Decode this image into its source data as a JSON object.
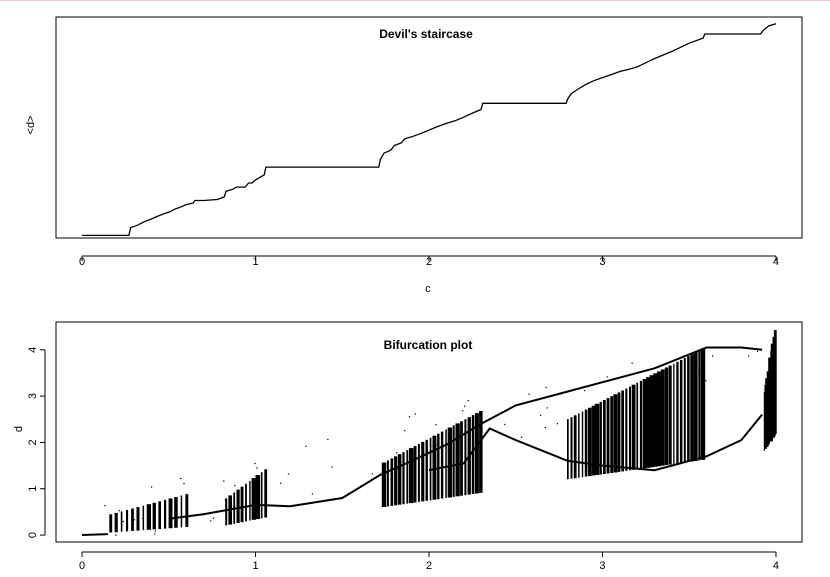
{
  "chart_data": [
    {
      "type": "line",
      "title": "Devil's staircase",
      "xlabel": "c",
      "ylabel": "<d>",
      "xlim": [
        -0.15,
        4.15
      ],
      "ylim": [
        -0.05,
        4.25
      ],
      "xticks": [
        0,
        1,
        2,
        3,
        4
      ],
      "yticks": [],
      "grid": false,
      "series": [
        {
          "x": [
            0,
            0.27,
            0.28,
            0.32,
            0.36,
            0.4,
            0.44,
            0.48,
            0.5,
            0.54,
            0.56,
            0.6,
            0.64,
            0.65,
            0.7,
            0.78,
            0.82,
            0.83,
            0.85,
            0.87,
            0.89,
            0.94,
            0.96,
            0.98,
            1.0,
            1.02,
            1.05,
            1.06,
            1.35,
            1.71,
            1.72,
            1.74,
            1.78,
            1.8,
            1.84,
            1.86,
            1.9,
            1.95,
            2.0,
            2.05,
            2.1,
            2.15,
            2.2,
            2.25,
            2.3,
            2.31,
            2.6,
            2.79,
            2.8,
            2.82,
            2.86,
            2.9,
            2.95,
            3.0,
            3.05,
            3.1,
            3.15,
            3.2,
            3.3,
            3.4,
            3.5,
            3.58,
            3.59,
            3.8,
            3.91,
            3.93,
            3.96,
            4.0
          ],
          "y": [
            0.0,
            0.0,
            0.15,
            0.2,
            0.27,
            0.32,
            0.38,
            0.43,
            0.45,
            0.52,
            0.54,
            0.6,
            0.63,
            0.68,
            0.68,
            0.7,
            0.75,
            0.86,
            0.88,
            0.9,
            0.94,
            0.94,
            1.02,
            1.02,
            1.08,
            1.12,
            1.18,
            1.33,
            1.33,
            1.33,
            1.48,
            1.6,
            1.66,
            1.75,
            1.8,
            1.88,
            1.92,
            1.98,
            2.05,
            2.12,
            2.18,
            2.23,
            2.3,
            2.38,
            2.45,
            2.57,
            2.57,
            2.57,
            2.66,
            2.76,
            2.85,
            2.93,
            3.01,
            3.07,
            3.13,
            3.19,
            3.23,
            3.28,
            3.44,
            3.58,
            3.74,
            3.84,
            3.92,
            3.92,
            3.92,
            4.0,
            4.08,
            4.12
          ]
        }
      ]
    },
    {
      "type": "scatter",
      "title": "Bifurcation plot",
      "xlabel": "",
      "ylabel": "d",
      "xlim": [
        -0.15,
        4.15
      ],
      "ylim": [
        -0.15,
        4.6
      ],
      "xticks": [
        0,
        1,
        2,
        3,
        4
      ],
      "yticks": [
        0,
        1,
        2,
        3,
        4
      ],
      "grid": false,
      "bands": [
        {
          "x": [
            0.15,
            0.62
          ],
          "y": [
            0.05,
            0.9
          ],
          "lines": 15
        },
        {
          "x": [
            0.82,
            1.07
          ],
          "y": [
            0.2,
            1.45
          ],
          "lines": 11
        },
        {
          "x": [
            1.73,
            2.31
          ],
          "y": [
            0.6,
            2.7
          ],
          "lines": 26
        },
        {
          "x": [
            2.79,
            3.59
          ],
          "y": [
            1.2,
            4.05
          ],
          "lines": 38
        },
        {
          "x": [
            3.93,
            4.0
          ],
          "y": [
            1.8,
            4.5
          ],
          "lines": 10
        }
      ],
      "branches": [
        {
          "x": [
            0.5,
            0.7,
            1.0,
            1.2,
            1.5,
            1.72,
            1.9,
            2.1,
            2.3,
            2.5,
            2.8,
            3.0,
            3.3,
            3.6,
            3.8,
            3.92
          ],
          "y": [
            0.35,
            0.45,
            0.65,
            0.62,
            0.8,
            1.3,
            1.6,
            1.95,
            2.4,
            2.8,
            3.1,
            3.3,
            3.6,
            4.05,
            4.05,
            4.0
          ]
        },
        {
          "x": [
            2.0,
            2.2,
            2.35,
            2.5,
            2.8,
            3.0,
            3.3,
            3.6,
            3.8,
            3.92
          ],
          "y": [
            1.4,
            1.55,
            2.3,
            2.05,
            1.6,
            1.5,
            1.4,
            1.7,
            2.05,
            2.6
          ]
        }
      ]
    }
  ]
}
